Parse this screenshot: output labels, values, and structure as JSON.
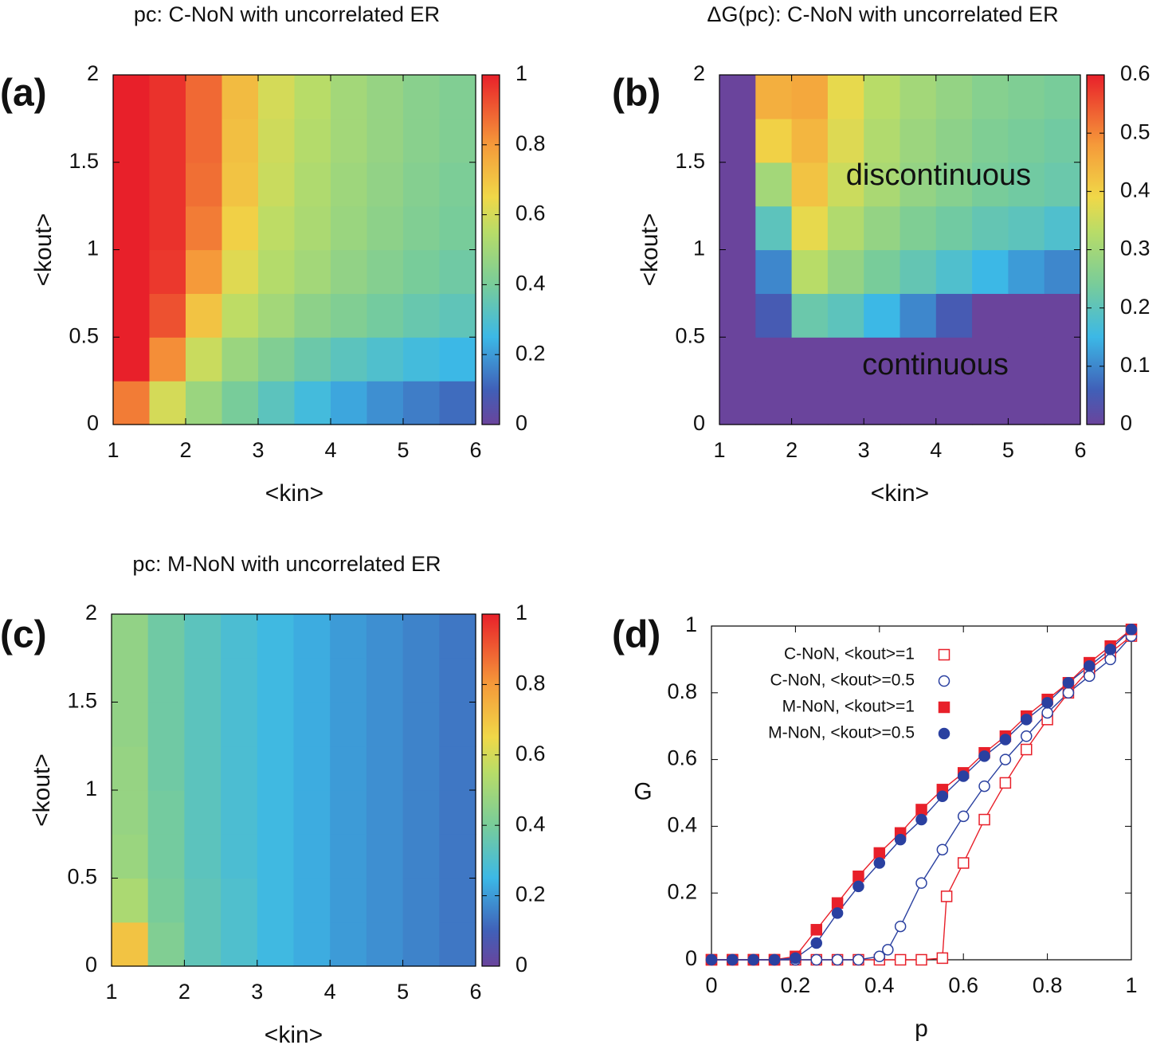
{
  "chart_data": [
    {
      "type": "heatmap",
      "panel_label": "(a)",
      "title": "pc: C-NoN with uncorrelated ER",
      "xlabel": "<kin>",
      "ylabel": "<kout>",
      "xlim": [
        1,
        6
      ],
      "xticks": [
        1,
        2,
        3,
        4,
        5,
        6
      ],
      "ylim": [
        0,
        2
      ],
      "yticks": [
        0,
        0.5,
        1,
        1.5,
        2
      ],
      "zlim": [
        0,
        1
      ],
      "zticks": [
        0,
        0.2,
        0.4,
        0.6,
        0.8,
        1
      ],
      "colorscale": [
        [
          0,
          "#6a449c"
        ],
        [
          0.1,
          "#4060b8"
        ],
        [
          0.25,
          "#3cb8e6"
        ],
        [
          0.4,
          "#78cc9a"
        ],
        [
          0.55,
          "#b8dc68"
        ],
        [
          0.65,
          "#f0d848"
        ],
        [
          0.8,
          "#f59a3a"
        ],
        [
          1,
          "#e8202a"
        ]
      ],
      "x": [
        1.25,
        1.75,
        2.25,
        2.75,
        3.25,
        3.75,
        4.25,
        4.75,
        5.25,
        5.75
      ],
      "y": [
        0.125,
        0.375,
        0.625,
        0.875,
        1.125,
        1.375,
        1.625,
        1.875
      ],
      "values": [
        [
          0.85,
          0.6,
          0.48,
          0.4,
          0.33,
          0.27,
          0.22,
          0.18,
          0.15,
          0.12
        ],
        [
          1,
          0.82,
          0.58,
          0.48,
          0.42,
          0.37,
          0.33,
          0.3,
          0.27,
          0.25
        ],
        [
          1,
          0.92,
          0.7,
          0.56,
          0.5,
          0.45,
          0.42,
          0.39,
          0.36,
          0.34
        ],
        [
          1,
          0.96,
          0.8,
          0.62,
          0.54,
          0.5,
          0.46,
          0.43,
          0.4,
          0.38
        ],
        [
          1,
          0.97,
          0.85,
          0.67,
          0.56,
          0.52,
          0.48,
          0.45,
          0.42,
          0.4
        ],
        [
          1,
          0.97,
          0.87,
          0.7,
          0.58,
          0.53,
          0.49,
          0.46,
          0.43,
          0.41
        ],
        [
          1,
          0.97,
          0.88,
          0.71,
          0.59,
          0.54,
          0.5,
          0.47,
          0.44,
          0.42
        ],
        [
          1,
          0.97,
          0.88,
          0.72,
          0.6,
          0.55,
          0.5,
          0.47,
          0.44,
          0.42
        ]
      ]
    },
    {
      "type": "heatmap",
      "panel_label": "(b)",
      "title": "ΔG(pc): C-NoN with uncorrelated ER",
      "xlabel": "<kin>",
      "ylabel": "<kout>",
      "annotations": [
        "discontinuous",
        "continuous"
      ],
      "xlim": [
        1,
        6
      ],
      "xticks": [
        1,
        2,
        3,
        4,
        5,
        6
      ],
      "ylim": [
        0,
        2
      ],
      "yticks": [
        0,
        0.5,
        1,
        1.5,
        2
      ],
      "zlim": [
        0,
        0.6
      ],
      "zticks": [
        0,
        0.1,
        0.2,
        0.3,
        0.4,
        0.5,
        0.6
      ],
      "colorscale": [
        [
          0,
          "#6a449c"
        ],
        [
          0.1,
          "#4060b8"
        ],
        [
          0.25,
          "#3cb8e6"
        ],
        [
          0.4,
          "#78cc9a"
        ],
        [
          0.55,
          "#b8dc68"
        ],
        [
          0.65,
          "#f0d848"
        ],
        [
          0.8,
          "#f59a3a"
        ],
        [
          1,
          "#e8202a"
        ]
      ],
      "x": [
        1.25,
        1.75,
        2.25,
        2.75,
        3.25,
        3.75,
        4.25,
        4.75,
        5.25,
        5.75
      ],
      "y": [
        0.125,
        0.375,
        0.625,
        0.875,
        1.125,
        1.375,
        1.625,
        1.875
      ],
      "values": [
        [
          0,
          0,
          0,
          0,
          0,
          0,
          0,
          0,
          0,
          0
        ],
        [
          0,
          0,
          0,
          0,
          0,
          0,
          0,
          0,
          0,
          0
        ],
        [
          0,
          0.05,
          0.22,
          0.2,
          0.15,
          0.1,
          0.05,
          0,
          0,
          0
        ],
        [
          0,
          0.1,
          0.33,
          0.28,
          0.24,
          0.21,
          0.18,
          0.15,
          0.12,
          0.1
        ],
        [
          0,
          0.2,
          0.38,
          0.32,
          0.28,
          0.25,
          0.23,
          0.21,
          0.2,
          0.18
        ],
        [
          0,
          0.3,
          0.42,
          0.35,
          0.31,
          0.28,
          0.26,
          0.24,
          0.23,
          0.22
        ],
        [
          0,
          0.4,
          0.44,
          0.37,
          0.32,
          0.29,
          0.27,
          0.25,
          0.24,
          0.23
        ],
        [
          0,
          0.45,
          0.46,
          0.38,
          0.33,
          0.3,
          0.28,
          0.26,
          0.25,
          0.24
        ]
      ]
    },
    {
      "type": "heatmap",
      "panel_label": "(c)",
      "title": "pc: M-NoN with uncorrelated ER",
      "xlabel": "<kin>",
      "ylabel": "<kout>",
      "xlim": [
        1,
        6
      ],
      "xticks": [
        1,
        2,
        3,
        4,
        5,
        6
      ],
      "ylim": [
        0,
        2
      ],
      "yticks": [
        0,
        0.5,
        1,
        1.5,
        2
      ],
      "zlim": [
        0,
        1
      ],
      "zticks": [
        0,
        0.2,
        0.4,
        0.6,
        0.8,
        1
      ],
      "colorscale": [
        [
          0,
          "#6a449c"
        ],
        [
          0.1,
          "#4060b8"
        ],
        [
          0.25,
          "#3cb8e6"
        ],
        [
          0.4,
          "#78cc9a"
        ],
        [
          0.55,
          "#b8dc68"
        ],
        [
          0.65,
          "#f0d848"
        ],
        [
          0.8,
          "#f59a3a"
        ],
        [
          1,
          "#e8202a"
        ]
      ],
      "x": [
        1.25,
        1.75,
        2.25,
        2.75,
        3.25,
        3.75,
        4.25,
        4.75,
        5.25,
        5.75
      ],
      "y": [
        0.125,
        0.375,
        0.625,
        0.875,
        1.125,
        1.375,
        1.625,
        1.875
      ],
      "values": [
        [
          0.7,
          0.42,
          0.34,
          0.3,
          0.26,
          0.23,
          0.2,
          0.18,
          0.16,
          0.14
        ],
        [
          0.52,
          0.4,
          0.34,
          0.3,
          0.26,
          0.23,
          0.2,
          0.18,
          0.16,
          0.14
        ],
        [
          0.48,
          0.39,
          0.33,
          0.29,
          0.26,
          0.23,
          0.2,
          0.18,
          0.16,
          0.14
        ],
        [
          0.47,
          0.39,
          0.33,
          0.29,
          0.26,
          0.23,
          0.2,
          0.18,
          0.16,
          0.14
        ],
        [
          0.47,
          0.38,
          0.33,
          0.29,
          0.26,
          0.23,
          0.2,
          0.18,
          0.16,
          0.14
        ],
        [
          0.46,
          0.38,
          0.33,
          0.29,
          0.26,
          0.23,
          0.2,
          0.18,
          0.16,
          0.14
        ],
        [
          0.46,
          0.38,
          0.33,
          0.29,
          0.26,
          0.23,
          0.2,
          0.18,
          0.16,
          0.14
        ],
        [
          0.46,
          0.38,
          0.33,
          0.29,
          0.26,
          0.23,
          0.2,
          0.18,
          0.16,
          0.14
        ]
      ]
    },
    {
      "type": "line",
      "panel_label": "(d)",
      "xlabel": "p",
      "ylabel": "G",
      "legend": "top-left",
      "xlim": [
        0,
        1
      ],
      "xticks": [
        0,
        0.2,
        0.4,
        0.6,
        0.8,
        1
      ],
      "ylim": [
        0,
        1
      ],
      "yticks": [
        0,
        0.2,
        0.4,
        0.6,
        0.8,
        1
      ],
      "series": [
        {
          "name": "C-NoN, <kout>=1",
          "color": "#e8202a",
          "marker": "square-open",
          "x": [
            0,
            0.05,
            0.1,
            0.15,
            0.2,
            0.25,
            0.3,
            0.35,
            0.4,
            0.45,
            0.5,
            0.55,
            0.56,
            0.6,
            0.65,
            0.7,
            0.75,
            0.8,
            0.85,
            0.9,
            0.95,
            1
          ],
          "values": [
            0,
            0,
            0,
            0,
            0,
            0,
            0,
            0,
            0,
            0,
            0,
            0.005,
            0.19,
            0.29,
            0.42,
            0.53,
            0.63,
            0.72,
            0.8,
            0.87,
            0.92,
            0.97
          ]
        },
        {
          "name": "C-NoN, <kout>=0.5",
          "color": "#2a40a0",
          "marker": "circle-open",
          "x": [
            0,
            0.05,
            0.1,
            0.15,
            0.2,
            0.25,
            0.3,
            0.35,
            0.4,
            0.42,
            0.45,
            0.5,
            0.55,
            0.6,
            0.65,
            0.7,
            0.75,
            0.8,
            0.85,
            0.9,
            0.95,
            1
          ],
          "values": [
            0,
            0,
            0,
            0,
            0,
            0,
            0,
            0,
            0.01,
            0.03,
            0.1,
            0.23,
            0.33,
            0.43,
            0.52,
            0.6,
            0.67,
            0.74,
            0.8,
            0.85,
            0.9,
            0.97
          ]
        },
        {
          "name": "M-NoN, <kout>=1",
          "color": "#e8202a",
          "marker": "square",
          "x": [
            0,
            0.05,
            0.1,
            0.15,
            0.2,
            0.25,
            0.3,
            0.35,
            0.4,
            0.45,
            0.5,
            0.55,
            0.6,
            0.65,
            0.7,
            0.75,
            0.8,
            0.85,
            0.9,
            0.95,
            1
          ],
          "values": [
            0,
            0,
            0,
            0,
            0.01,
            0.09,
            0.17,
            0.25,
            0.32,
            0.38,
            0.45,
            0.51,
            0.56,
            0.62,
            0.67,
            0.73,
            0.78,
            0.83,
            0.89,
            0.94,
            0.99
          ]
        },
        {
          "name": "M-NoN, <kout>=0.5",
          "color": "#2a40a0",
          "marker": "circle",
          "x": [
            0,
            0.05,
            0.1,
            0.15,
            0.2,
            0.25,
            0.3,
            0.35,
            0.4,
            0.45,
            0.5,
            0.55,
            0.6,
            0.65,
            0.7,
            0.75,
            0.8,
            0.85,
            0.9,
            0.95,
            1
          ],
          "values": [
            0,
            0,
            0,
            0,
            0.005,
            0.05,
            0.14,
            0.22,
            0.29,
            0.36,
            0.42,
            0.49,
            0.55,
            0.61,
            0.66,
            0.72,
            0.77,
            0.83,
            0.88,
            0.93,
            0.99
          ]
        }
      ]
    }
  ]
}
